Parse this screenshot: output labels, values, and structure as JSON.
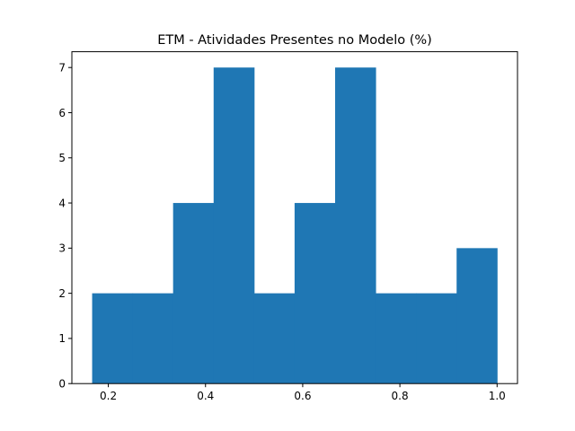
{
  "chart_data": {
    "type": "bar",
    "title": "ETM - Atividades Presentes no Modelo (%)",
    "xlabel": "",
    "ylabel": "",
    "bin_edges": [
      0.1667,
      0.25,
      0.3333,
      0.4167,
      0.5,
      0.5833,
      0.6667,
      0.75,
      0.8333,
      0.9167,
      1.0
    ],
    "values": [
      2,
      2,
      4,
      7,
      2,
      4,
      7,
      2,
      2,
      3
    ],
    "xlim": [
      0.125,
      1.042
    ],
    "ylim": [
      0,
      7.35
    ],
    "xticks": [
      0.2,
      0.4,
      0.6,
      0.8,
      1.0
    ],
    "xtick_labels": [
      "0.2",
      "0.4",
      "0.6",
      "0.8",
      "1.0"
    ],
    "yticks": [
      0,
      1,
      2,
      3,
      4,
      5,
      6,
      7
    ],
    "ytick_labels": [
      "0",
      "1",
      "2",
      "3",
      "4",
      "5",
      "6",
      "7"
    ],
    "bar_color": "#1f77b4",
    "grid": false
  }
}
